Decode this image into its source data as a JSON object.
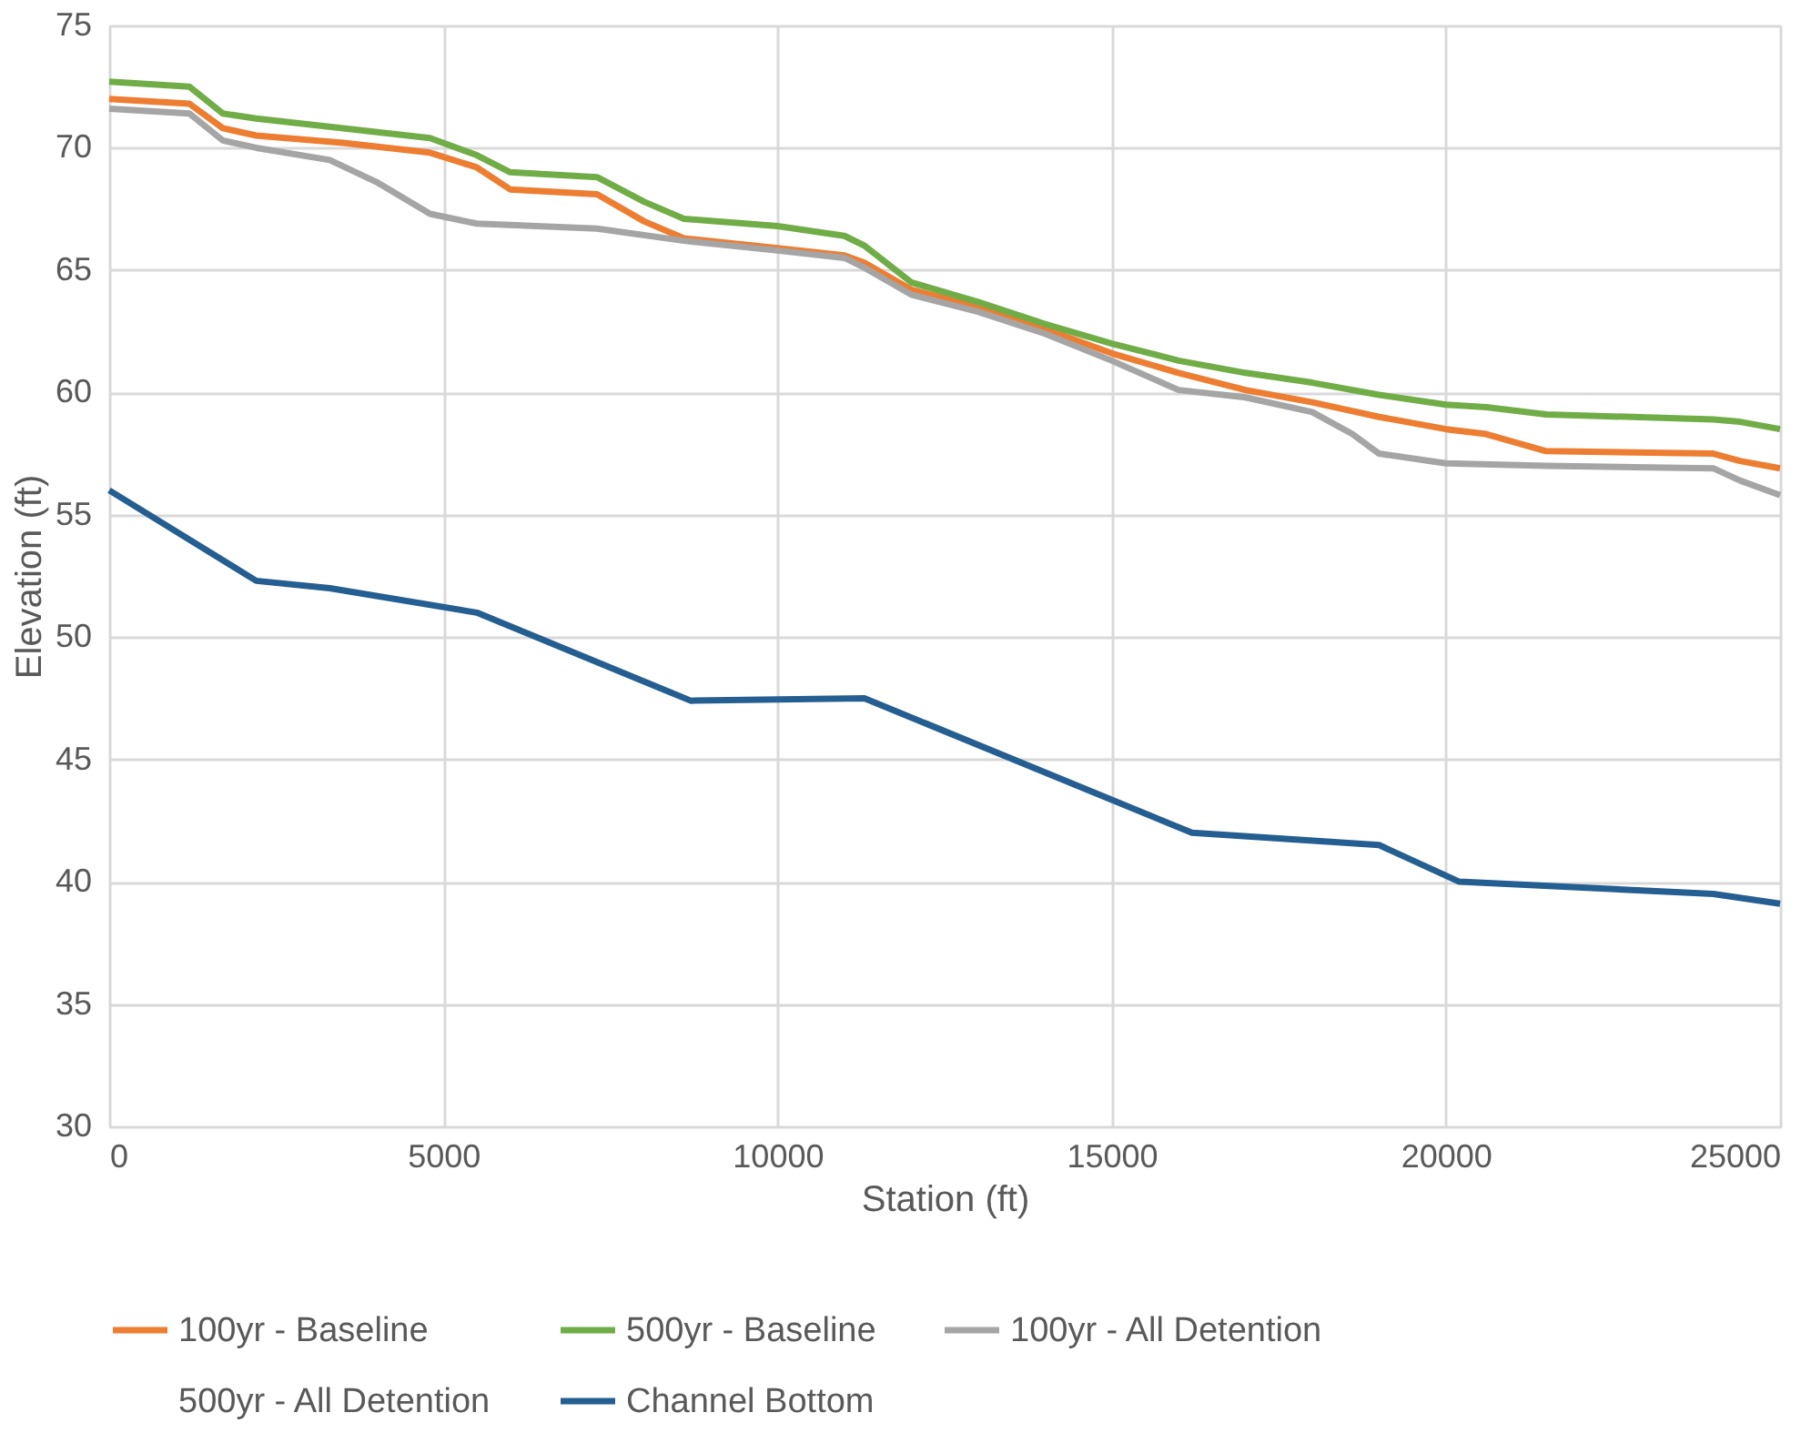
{
  "chart_data": {
    "type": "line",
    "xlabel": "Station (ft)",
    "ylabel": "Elevation (ft)",
    "xlim": [
      0,
      25000
    ],
    "xticks": [
      0,
      5000,
      10000,
      15000,
      20000,
      25000
    ],
    "ylim": [
      30,
      75
    ],
    "yticks": [
      30,
      35,
      40,
      45,
      50,
      55,
      60,
      65,
      70,
      75
    ],
    "grid": true,
    "legend": "bottom",
    "line_style": "solid",
    "marker": "none",
    "series": [
      {
        "name": "100yr - Baseline",
        "color": "#ed7d31",
        "x": [
          0,
          1200,
          1700,
          2200,
          3500,
          4800,
          5500,
          6000,
          7300,
          8000,
          8600,
          10000,
          11000,
          11300,
          12000,
          13000,
          14000,
          15000,
          16000,
          17000,
          18000,
          19000,
          20000,
          20600,
          21500,
          24000,
          24400,
          25000
        ],
        "values": [
          72,
          71.8,
          70.8,
          70.5,
          70.2,
          69.8,
          69.2,
          68.3,
          68.1,
          67,
          66.3,
          65.9,
          65.6,
          65.3,
          64.2,
          63.5,
          62.6,
          61.6,
          60.8,
          60.1,
          59.6,
          59,
          58.5,
          58.3,
          57.6,
          57.5,
          57.2,
          56.9
        ]
      },
      {
        "name": "500yr - Baseline",
        "color": "#70ad47",
        "x": [
          0,
          1200,
          1700,
          2200,
          3500,
          4800,
          5500,
          6000,
          7300,
          8000,
          8600,
          10000,
          11000,
          11300,
          12000,
          13000,
          14000,
          15000,
          16000,
          17000,
          18000,
          19000,
          20000,
          20600,
          21500,
          24000,
          24400,
          25000
        ],
        "values": [
          72.7,
          72.5,
          71.4,
          71.2,
          70.8,
          70.4,
          69.7,
          69,
          68.8,
          67.8,
          67.1,
          66.8,
          66.4,
          66,
          64.5,
          63.7,
          62.8,
          62,
          61.3,
          60.8,
          60.4,
          59.9,
          59.5,
          59.4,
          59.1,
          58.9,
          58.8,
          58.5
        ]
      },
      {
        "name": "100yr - All Detention",
        "color": "#a5a5a5",
        "x": [
          0,
          1200,
          1700,
          2200,
          3300,
          4000,
          4800,
          5500,
          7300,
          8600,
          10000,
          11000,
          11300,
          12000,
          13000,
          14000,
          15000,
          16000,
          17000,
          18000,
          18600,
          19000,
          20000,
          21500,
          24000,
          24400,
          25000
        ],
        "values": [
          71.6,
          71.4,
          70.3,
          70,
          69.5,
          68.6,
          67.3,
          66.9,
          66.7,
          66.2,
          65.8,
          65.5,
          65.1,
          64,
          63.3,
          62.4,
          61.3,
          60.1,
          59.8,
          59.2,
          58.3,
          57.5,
          57.1,
          57,
          56.9,
          56.4,
          55.8
        ]
      },
      {
        "name": "500yr - All Detention"
      },
      {
        "name": "Channel Bottom",
        "color": "#255e91",
        "x": [
          0,
          2200,
          3300,
          5500,
          8700,
          11300,
          16200,
          19000,
          20200,
          24000,
          25000
        ],
        "values": [
          56,
          52.3,
          52,
          51,
          47.4,
          47.5,
          42,
          41.5,
          40,
          39.5,
          39.1
        ]
      }
    ]
  }
}
